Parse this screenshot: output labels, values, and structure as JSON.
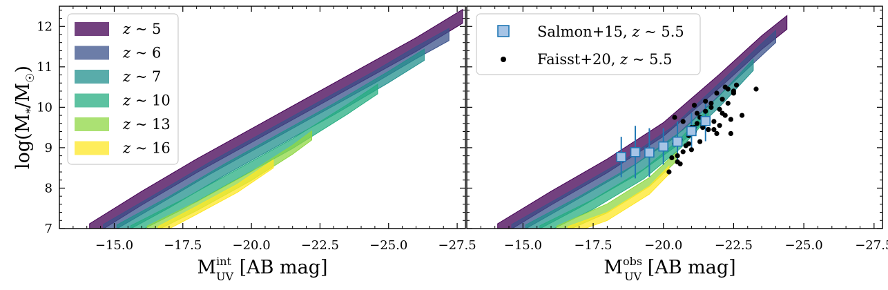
{
  "chart_data": [
    {
      "type": "area",
      "panel": "left",
      "ylabel": "log(M*/M☉)",
      "ylabel_main": "log(M",
      "ylabel_sub": "*",
      "ylabel_mid": "/M",
      "ylabel_sub2": "☉",
      "ylabel_end": ")",
      "xlabel_main": "M",
      "xlabel_sup": "int",
      "xlabel_sub": "UV",
      "xlabel_tail": " [AB mag]",
      "xlim": [
        -13.0,
        -27.8
      ],
      "ylim": [
        7.0,
        12.5
      ],
      "xticks": [
        -15.0,
        -17.5,
        -20.0,
        -22.5,
        -25.0,
        -27.5
      ],
      "xtick_labels": [
        "−15.0",
        "−17.5",
        "−20.0",
        "−22.5",
        "−25.0",
        "−27.5"
      ],
      "yticks": [
        7,
        8,
        9,
        10,
        11,
        12
      ],
      "ytick_labels": [
        "7",
        "8",
        "9",
        "10",
        "11",
        "12"
      ],
      "legend_location": "upper left",
      "series": [
        {
          "name": "z ~ 5",
          "label_var": "z",
          "label_val": "5",
          "color": "#440154",
          "x": [
            -14.1,
            -16.0,
            -18.0,
            -20.0,
            -22.0,
            -24.0,
            -26.0,
            -27.7
          ],
          "y": [
            6.95,
            7.75,
            8.55,
            9.3,
            10.05,
            10.8,
            11.55,
            12.25
          ],
          "width": 0.17
        },
        {
          "name": "z ~ 6",
          "label_var": "z",
          "label_val": "6",
          "color": "#3b528b",
          "x": [
            -14.6,
            -16.5,
            -18.5,
            -20.5,
            -22.5,
            -24.5,
            -26.0,
            -27.2
          ],
          "y": [
            6.95,
            7.7,
            8.5,
            9.25,
            10.0,
            10.75,
            11.35,
            11.8
          ],
          "width": 0.15
        },
        {
          "name": "z ~ 7",
          "label_var": "z",
          "label_val": "7",
          "color": "#21908d",
          "x": [
            -15.1,
            -17.0,
            -19.0,
            -21.0,
            -23.0,
            -25.0,
            -26.3
          ],
          "y": [
            6.95,
            7.65,
            8.45,
            9.2,
            9.95,
            10.75,
            11.3
          ],
          "width": 0.14
        },
        {
          "name": "z ~ 10",
          "label_var": "z",
          "label_val": "10",
          "color": "#27ad81",
          "x": [
            -15.6,
            -17.5,
            -19.5,
            -21.5,
            -23.5,
            -24.6
          ],
          "y": [
            6.95,
            7.6,
            8.35,
            9.1,
            9.95,
            10.45
          ],
          "width": 0.12
        },
        {
          "name": "z ~ 13",
          "label_var": "z",
          "label_val": "13",
          "color": "#8fd744",
          "x": [
            -16.2,
            -18.0,
            -20.0,
            -21.5,
            -22.2
          ],
          "y": [
            6.95,
            7.55,
            8.3,
            8.95,
            9.3
          ],
          "width": 0.11
        },
        {
          "name": "z ~ 16",
          "label_var": "z",
          "label_val": "16",
          "color": "#fde725",
          "x": [
            -16.6,
            -18.0,
            -19.5,
            -20.8
          ],
          "y": [
            6.95,
            7.45,
            8.0,
            8.6
          ],
          "width": 0.1
        }
      ]
    },
    {
      "type": "scatter",
      "panel": "right",
      "xlabel_main": "M",
      "xlabel_sup": "obs",
      "xlabel_sub": "UV",
      "xlabel_tail": " [AB mag]",
      "xlim": [
        -13.0,
        -27.8
      ],
      "ylim": [
        7.0,
        12.5
      ],
      "xticks": [
        -15.0,
        -17.5,
        -20.0,
        -22.5,
        -25.0,
        -27.5
      ],
      "xtick_labels": [
        "−15.0",
        "−17.5",
        "−20.0",
        "−22.5",
        "−25.0",
        "−27.5"
      ],
      "yticks": [
        7,
        8,
        9,
        10,
        11,
        12
      ],
      "legend_location": "upper left",
      "bands": [
        {
          "name": "z ~ 5",
          "color": "#440154",
          "x": [
            -14.1,
            -16.0,
            -18.0,
            -20.0,
            -22.0,
            -23.5,
            -24.4
          ],
          "y": [
            6.95,
            7.75,
            8.55,
            9.45,
            10.65,
            11.6,
            12.1
          ],
          "width": 0.17
        },
        {
          "name": "z ~ 6",
          "color": "#3b528b",
          "x": [
            -14.6,
            -16.5,
            -18.5,
            -20.3,
            -22.0,
            -23.3,
            -24.0
          ],
          "y": [
            6.95,
            7.7,
            8.5,
            9.35,
            10.45,
            11.3,
            11.75
          ],
          "width": 0.15
        },
        {
          "name": "z ~ 7",
          "color": "#21908d",
          "x": [
            -15.1,
            -17.0,
            -19.0,
            -20.7,
            -22.0,
            -23.2
          ],
          "y": [
            6.95,
            7.65,
            8.45,
            9.3,
            10.15,
            11.05
          ],
          "width": 0.14
        },
        {
          "name": "z ~ 10",
          "color": "#27ad81",
          "x": [
            -15.6,
            -17.5,
            -19.3,
            -20.6,
            -21.6
          ],
          "y": [
            6.95,
            7.6,
            8.35,
            9.1,
            9.85
          ],
          "width": 0.12
        },
        {
          "name": "z ~ 13",
          "color": "#8fd744",
          "x": [
            -16.2,
            -18.0,
            -19.5,
            -20.5
          ],
          "y": [
            6.95,
            7.5,
            8.15,
            8.8
          ],
          "width": 0.11
        },
        {
          "name": "z ~ 16",
          "color": "#fde725",
          "x": [
            -16.6,
            -18.0,
            -19.5,
            -20.2
          ],
          "y": [
            6.95,
            7.3,
            7.95,
            8.45
          ],
          "width": 0.1
        }
      ],
      "series": [
        {
          "name": "Salmon+15, z ~ 5.5",
          "label_prefix": "Salmon+15, ",
          "label_var": "z",
          "label_val": "5.5",
          "marker": "square",
          "color": "#1f77b4",
          "fill": "#a6c4e6",
          "x": [
            -18.5,
            -19.0,
            -19.5,
            -20.0,
            -20.5,
            -21.0,
            -21.5
          ],
          "y": [
            8.77,
            8.89,
            8.88,
            9.03,
            9.15,
            9.41,
            9.66
          ],
          "yerr": [
            0.5,
            0.65,
            0.6,
            0.45,
            0.5,
            0.45,
            0.5
          ]
        },
        {
          "name": "Faisst+20, z ~ 5.5",
          "label_prefix": "Faisst+20, ",
          "label_var": "z",
          "label_val": "5.5",
          "marker": "circle",
          "color": "#000000",
          "x": [
            -20.2,
            -20.3,
            -20.4,
            -20.5,
            -20.6,
            -20.7,
            -20.8,
            -20.5,
            -20.6,
            -20.9,
            -21.0,
            -21.1,
            -21.2,
            -21.3,
            -21.4,
            -21.5,
            -21.1,
            -21.3,
            -21.6,
            -21.7,
            -21.8,
            -21.9,
            -22.0,
            -22.1,
            -22.2,
            -22.3,
            -22.4,
            -22.5,
            -22.6,
            -21.0,
            -21.2,
            -21.4,
            -21.5,
            -21.8,
            -22.0,
            -22.2,
            -22.4,
            -22.5,
            -22.8,
            -23.3,
            -21.6,
            -21.7,
            -21.9,
            -22.1,
            -22.3,
            -20.4,
            -20.7,
            -20.9,
            -21.1,
            -21.4
          ],
          "y": [
            8.4,
            8.75,
            9.1,
            8.8,
            8.6,
            8.9,
            9.05,
            8.65,
            9.2,
            9.3,
            8.95,
            9.4,
            9.6,
            9.15,
            9.55,
            9.9,
            10.05,
            9.75,
            9.45,
            10.1,
            9.65,
            10.35,
            9.55,
            10.2,
            9.8,
            10.45,
            9.35,
            10.4,
            10.55,
            9.5,
            9.85,
            9.5,
            10.15,
            9.45,
            9.95,
            10.5,
            9.7,
            10.35,
            9.8,
            10.45,
            9.45,
            10.0,
            9.35,
            9.85,
            10.1,
            9.75,
            9.65,
            9.1,
            9.5,
            9.6
          ]
        }
      ]
    }
  ]
}
